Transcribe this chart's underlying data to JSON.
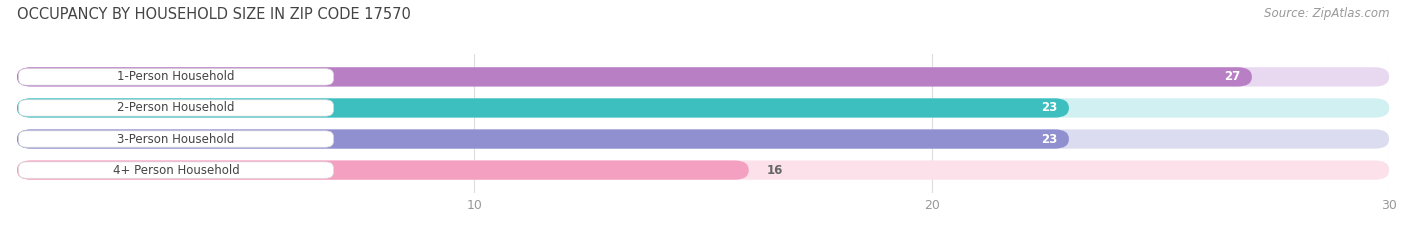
{
  "title": "OCCUPANCY BY HOUSEHOLD SIZE IN ZIP CODE 17570",
  "source": "Source: ZipAtlas.com",
  "categories": [
    "1-Person Household",
    "2-Person Household",
    "3-Person Household",
    "4+ Person Household"
  ],
  "values": [
    27,
    23,
    23,
    16
  ],
  "bar_colors": [
    "#b87fc4",
    "#3dbfbf",
    "#9090d0",
    "#f4a0c0"
  ],
  "bar_bg_colors": [
    "#e8d8f0",
    "#d0f0f2",
    "#dcdcf0",
    "#fce0ea"
  ],
  "xlim": [
    0,
    30
  ],
  "xticks": [
    10,
    20,
    30
  ],
  "label_color_inside": "#ffffff",
  "label_color_outside": "#666666",
  "value_threshold": 18,
  "background_color": "#ffffff",
  "bar_height": 0.62,
  "bar_gap": 0.38,
  "title_fontsize": 10.5,
  "source_fontsize": 8.5,
  "label_fontsize": 8.5,
  "value_fontsize": 8.5,
  "tick_fontsize": 9,
  "title_color": "#444444",
  "tick_color": "#aaaaaa"
}
